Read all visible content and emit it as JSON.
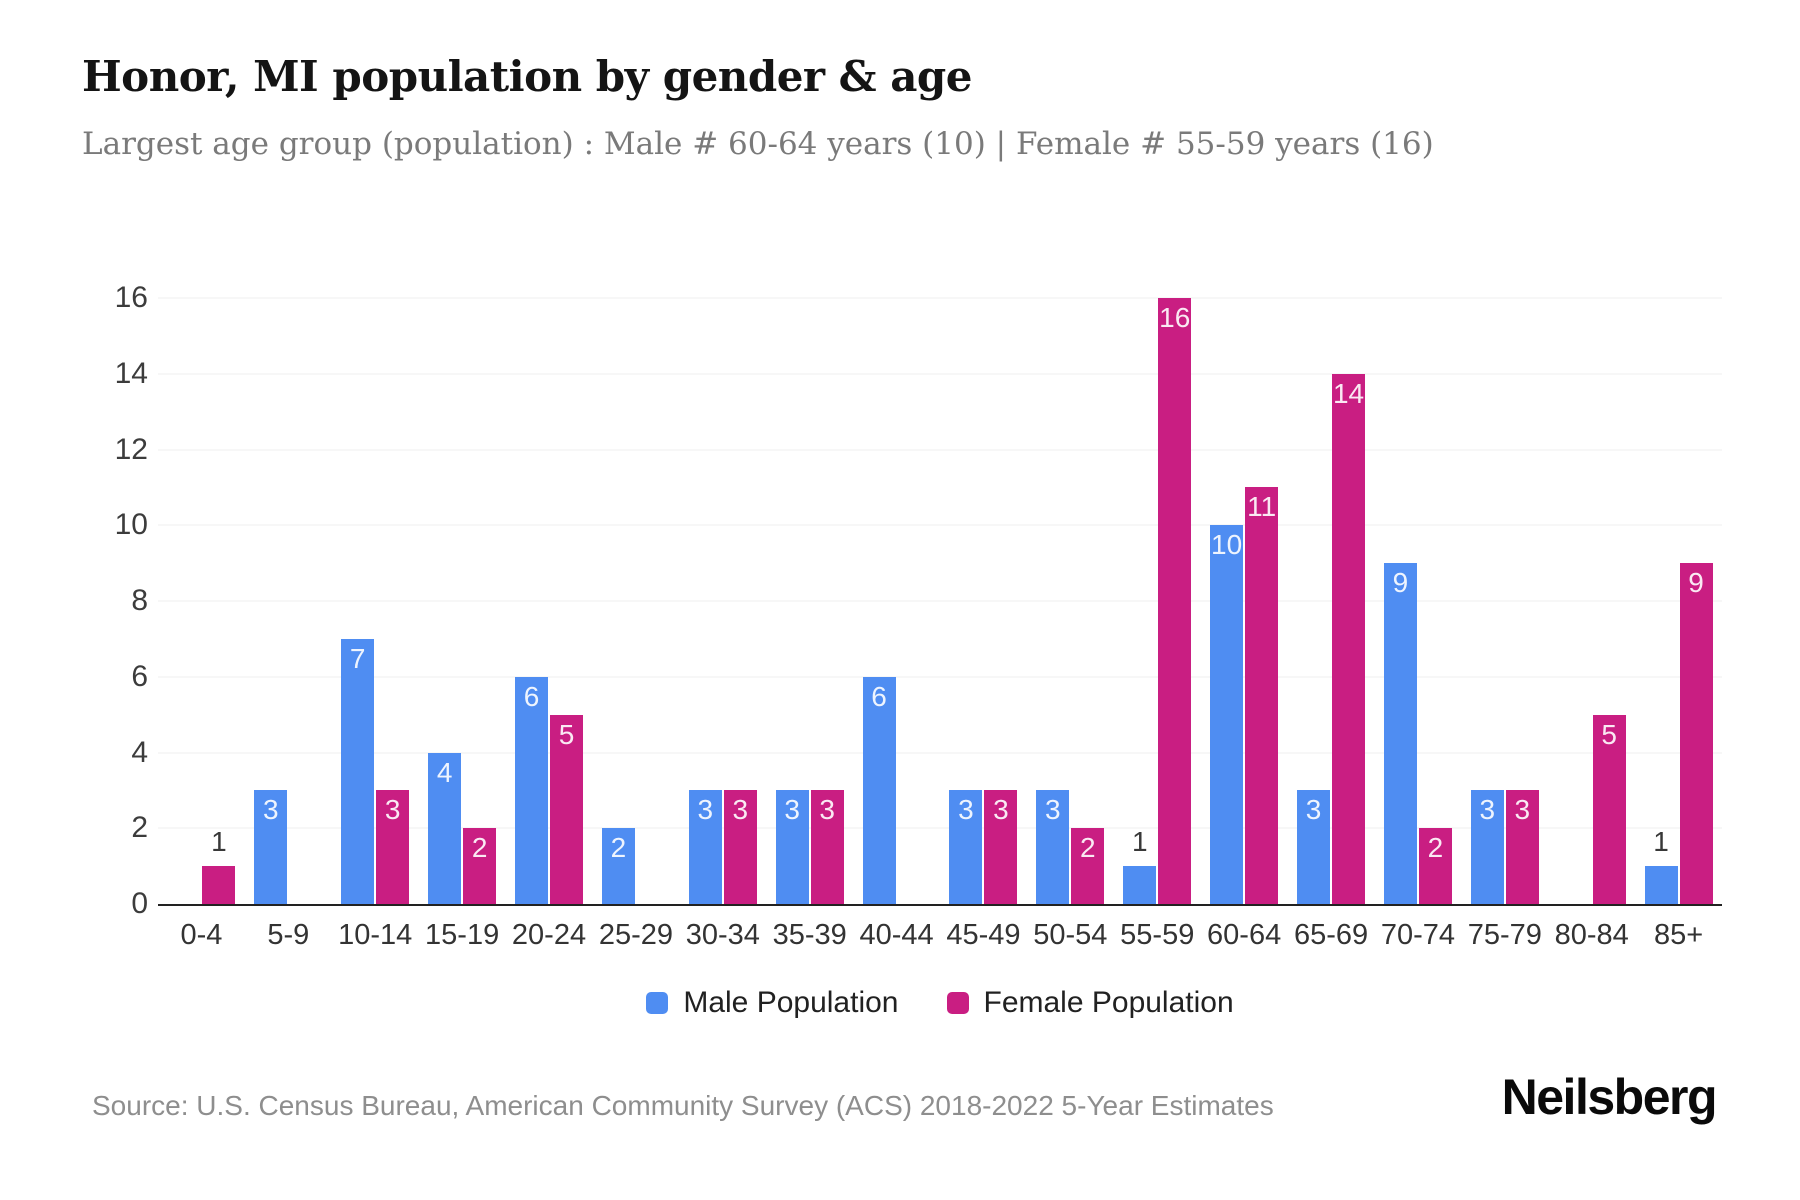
{
  "header": {
    "title": "Honor, MI population by gender & age",
    "subtitle": "Largest age group (population) : Male # 60-64 years (10) | Female # 55-59 years (16)"
  },
  "chart_data": {
    "type": "bar",
    "title": "Honor, MI population by gender & age",
    "categories": [
      "0-4",
      "5-9",
      "10-14",
      "15-19",
      "20-24",
      "25-29",
      "30-34",
      "35-39",
      "40-44",
      "45-49",
      "50-54",
      "55-59",
      "60-64",
      "65-69",
      "70-74",
      "75-79",
      "80-84",
      "85+"
    ],
    "series": [
      {
        "name": "Male Population",
        "color": "#4F8DF2",
        "values": [
          0,
          3,
          7,
          4,
          6,
          2,
          3,
          3,
          6,
          3,
          3,
          1,
          10,
          3,
          9,
          3,
          0,
          1
        ]
      },
      {
        "name": "Female Population",
        "color": "#C91E82",
        "values": [
          1,
          0,
          3,
          2,
          5,
          0,
          3,
          3,
          0,
          3,
          2,
          16,
          11,
          14,
          2,
          3,
          5,
          9
        ]
      }
    ],
    "xlabel": "",
    "ylabel": "",
    "ylim": [
      0,
      16
    ],
    "yticks": [
      0,
      2,
      4,
      6,
      8,
      10,
      12,
      14,
      16
    ],
    "grid": true,
    "legend_position": "bottom",
    "bar_label_color_inside": "#ffffff",
    "bar_label_color_above": "#383838"
  },
  "footer": {
    "source": "Source: U.S. Census Bureau, American Community Survey (ACS) 2018-2022 5-Year Estimates",
    "brand": "Neilsberg"
  }
}
